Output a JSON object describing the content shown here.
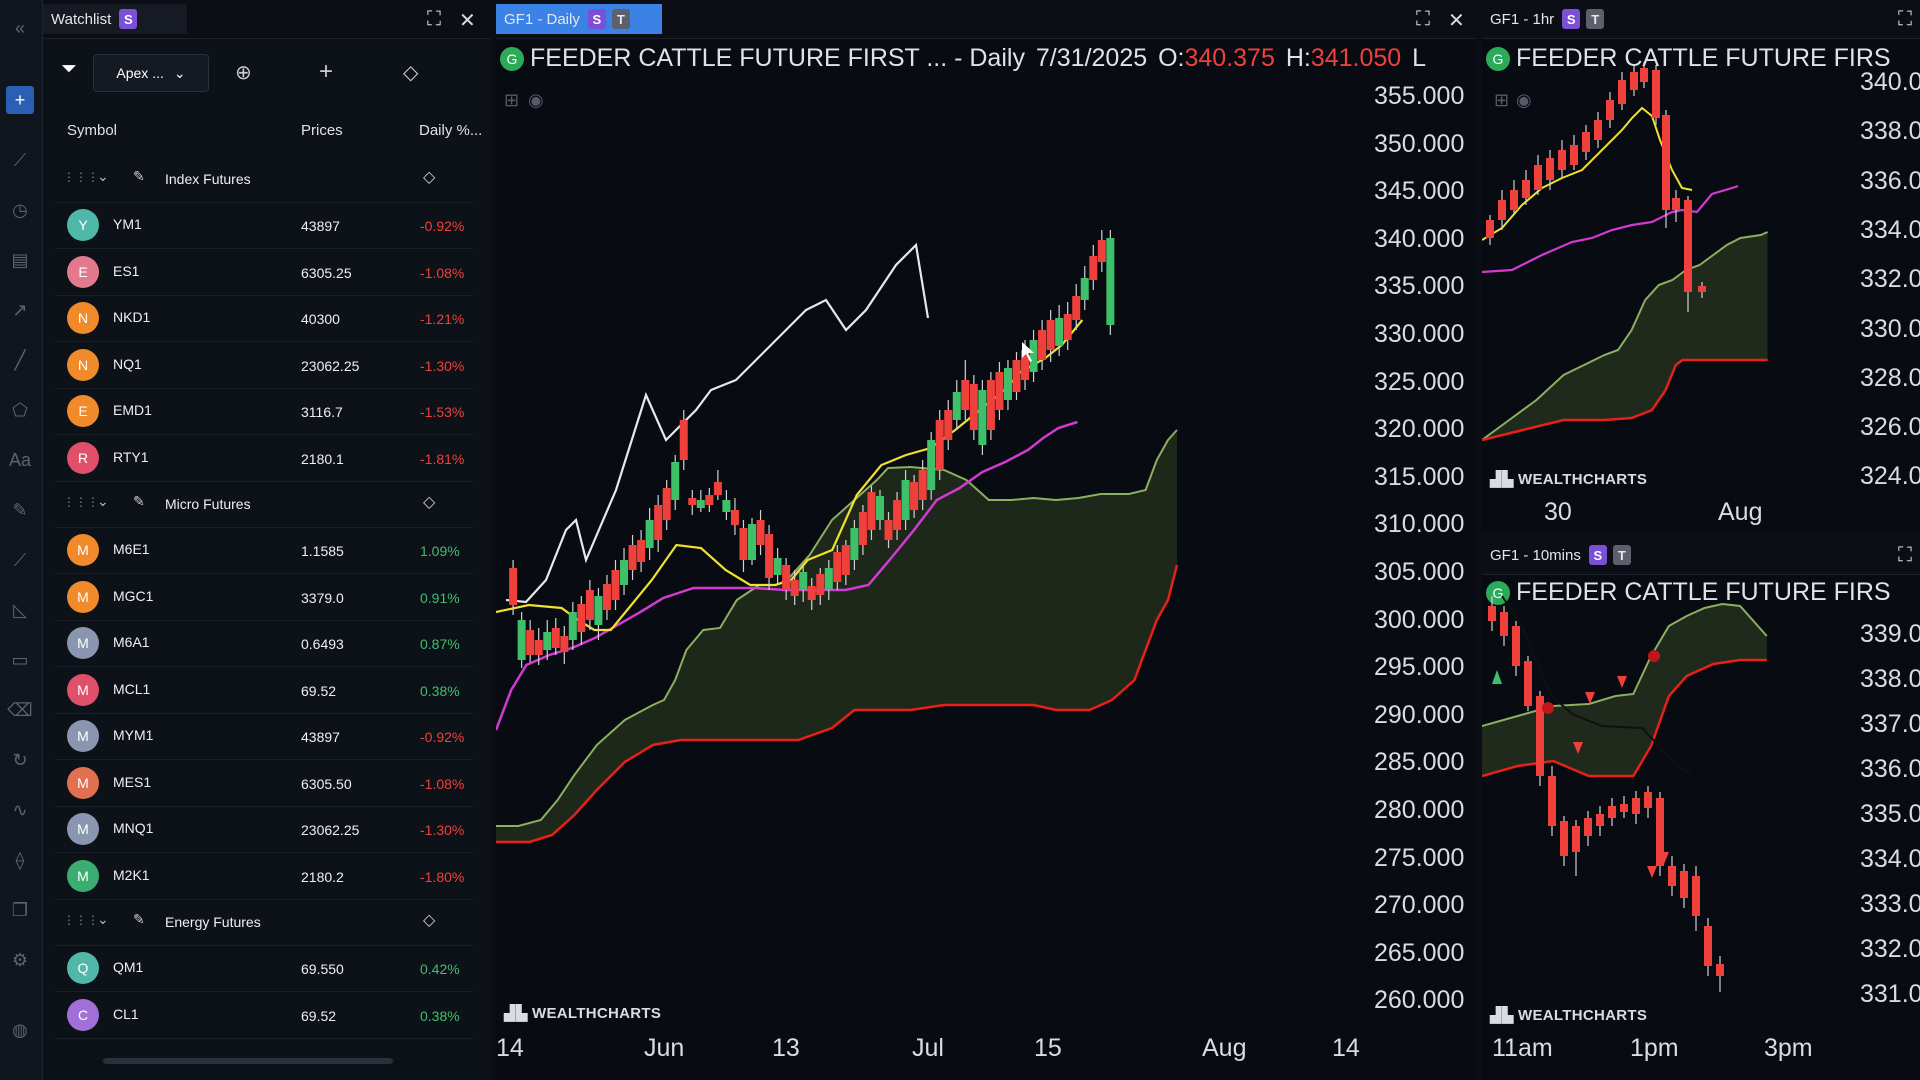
{
  "watchlist": {
    "tab_label": "Watchlist",
    "badge": "S",
    "filter_button": "Apex ...",
    "columns": {
      "symbol": "Symbol",
      "prices": "Prices",
      "daily": "Daily %..."
    },
    "groups": [
      {
        "name": "Index Futures",
        "items": [
          {
            "letter": "Y",
            "symbol": "YM1",
            "price": "43897",
            "change": "-0.92%",
            "color": "#4fb8a8"
          },
          {
            "letter": "E",
            "symbol": "ES1",
            "price": "6305.25",
            "change": "-1.08%",
            "color": "#e07a8c"
          },
          {
            "letter": "N",
            "symbol": "NKD1",
            "price": "40300",
            "change": "-1.21%",
            "color": "#f08a2a"
          },
          {
            "letter": "N",
            "symbol": "NQ1",
            "price": "23062.25",
            "change": "-1.30%",
            "color": "#f08a2a"
          },
          {
            "letter": "E",
            "symbol": "EMD1",
            "price": "3116.7",
            "change": "-1.53%",
            "color": "#f08a2a"
          },
          {
            "letter": "R",
            "symbol": "RTY1",
            "price": "2180.1",
            "change": "-1.81%",
            "color": "#e0506a"
          }
        ]
      },
      {
        "name": "Micro Futures",
        "items": [
          {
            "letter": "M",
            "symbol": "M6E1",
            "price": "1.1585",
            "change": "1.09%",
            "color": "#f08a2a"
          },
          {
            "letter": "M",
            "symbol": "MGC1",
            "price": "3379.0",
            "change": "0.91%",
            "color": "#f08a2a"
          },
          {
            "letter": "M",
            "symbol": "M6A1",
            "price": "0.6493",
            "change": "0.87%",
            "color": "#8a96b0"
          },
          {
            "letter": "M",
            "symbol": "MCL1",
            "price": "69.52",
            "change": "0.38%",
            "color": "#e0506a"
          },
          {
            "letter": "M",
            "symbol": "MYM1",
            "price": "43897",
            "change": "-0.92%",
            "color": "#8a96b0"
          },
          {
            "letter": "M",
            "symbol": "MES1",
            "price": "6305.50",
            "change": "-1.08%",
            "color": "#e07050"
          },
          {
            "letter": "M",
            "symbol": "MNQ1",
            "price": "23062.25",
            "change": "-1.30%",
            "color": "#8a96b0"
          },
          {
            "letter": "M",
            "symbol": "M2K1",
            "price": "2180.2",
            "change": "-1.80%",
            "color": "#3aae70"
          }
        ]
      },
      {
        "name": "Energy Futures",
        "items": [
          {
            "letter": "Q",
            "symbol": "QM1",
            "price": "69.550",
            "change": "0.42%",
            "color": "#4fb8a8"
          },
          {
            "letter": "C",
            "symbol": "CL1",
            "price": "69.52",
            "change": "0.38%",
            "color": "#a070d8"
          }
        ]
      }
    ]
  },
  "colors": {
    "up": "#3ec06b",
    "down": "#f0403c",
    "accent": "#2b5fb3"
  },
  "daily_chart": {
    "tab": "GF1 - Daily",
    "badge_s": "S",
    "badge_t": "T",
    "title": "FEEDER CATTLE FUTURE FIRST ... - Daily",
    "date": "7/31/2025",
    "o_label": "O:",
    "o_value": "340.375",
    "h_label": "H:",
    "h_value": "341.050",
    "l_label": "L",
    "y_ticks": [
      "355.000",
      "350.000",
      "345.000",
      "340.000",
      "335.000",
      "330.000",
      "325.000",
      "320.000",
      "315.000",
      "310.000",
      "305.000",
      "300.000",
      "295.000",
      "290.000",
      "285.000",
      "280.000",
      "275.000",
      "270.000",
      "265.000",
      "260.000"
    ],
    "x_ticks": [
      "14",
      "Jun",
      "13",
      "Jul",
      "15",
      "Aug",
      "14"
    ],
    "watermark": "WEALTHCHARTS"
  },
  "hourly_chart": {
    "tab": "GF1 - 1hr",
    "badge_s": "S",
    "badge_t": "T",
    "title": "FEEDER CATTLE FUTURE FIRS",
    "y_ticks": [
      "340.0",
      "338.0",
      "336.0",
      "334.0",
      "332.0",
      "330.0",
      "328.0",
      "326.0",
      "324.0"
    ],
    "x_ticks": [
      "30",
      "Aug"
    ],
    "watermark": "WEALTHCHARTS"
  },
  "tenmin_chart": {
    "tab": "GF1 - 10mins",
    "badge_s": "S",
    "badge_t": "T",
    "title": "FEEDER CATTLE FUTURE FIRS",
    "y_ticks": [
      "339.0",
      "338.0",
      "337.0",
      "336.0",
      "335.0",
      "334.0",
      "333.0",
      "332.0",
      "331.0"
    ],
    "x_ticks": [
      "11am",
      "1pm",
      "3pm"
    ],
    "watermark": "WEALTHCHARTS"
  }
}
